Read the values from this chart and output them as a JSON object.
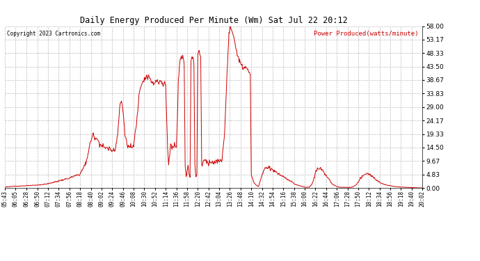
{
  "title": "Daily Energy Produced Per Minute (Wm) Sat Jul 22 20:12",
  "legend_label": "Power Produced(watts/minute)",
  "copyright": "Copyright 2023 Cartronics.com",
  "line_color": "#cc0000",
  "bg_color": "#ffffff",
  "grid_color": "#bbbbbb",
  "yticks": [
    0.0,
    4.83,
    9.67,
    14.5,
    19.33,
    24.17,
    29.0,
    33.83,
    38.67,
    43.5,
    48.33,
    53.17,
    58.0
  ],
  "ymax": 58.0,
  "ymin": 0.0,
  "xtick_labels": [
    "05:43",
    "06:05",
    "06:28",
    "06:50",
    "07:12",
    "07:34",
    "07:56",
    "08:18",
    "08:40",
    "09:02",
    "09:24",
    "09:46",
    "10:08",
    "10:30",
    "10:52",
    "11:14",
    "11:36",
    "11:58",
    "12:20",
    "12:42",
    "13:04",
    "13:26",
    "13:48",
    "14:10",
    "14:32",
    "14:54",
    "15:16",
    "15:38",
    "16:00",
    "16:22",
    "16:44",
    "17:06",
    "17:28",
    "17:50",
    "18:12",
    "18:34",
    "18:56",
    "19:18",
    "19:40",
    "20:02"
  ],
  "xtick_minutes": [
    343,
    365,
    388,
    410,
    432,
    454,
    476,
    498,
    520,
    542,
    564,
    586,
    608,
    630,
    652,
    674,
    696,
    718,
    740,
    762,
    784,
    806,
    828,
    850,
    872,
    894,
    916,
    938,
    960,
    982,
    1004,
    1026,
    1048,
    1070,
    1092,
    1114,
    1136,
    1158,
    1180,
    1202
  ]
}
